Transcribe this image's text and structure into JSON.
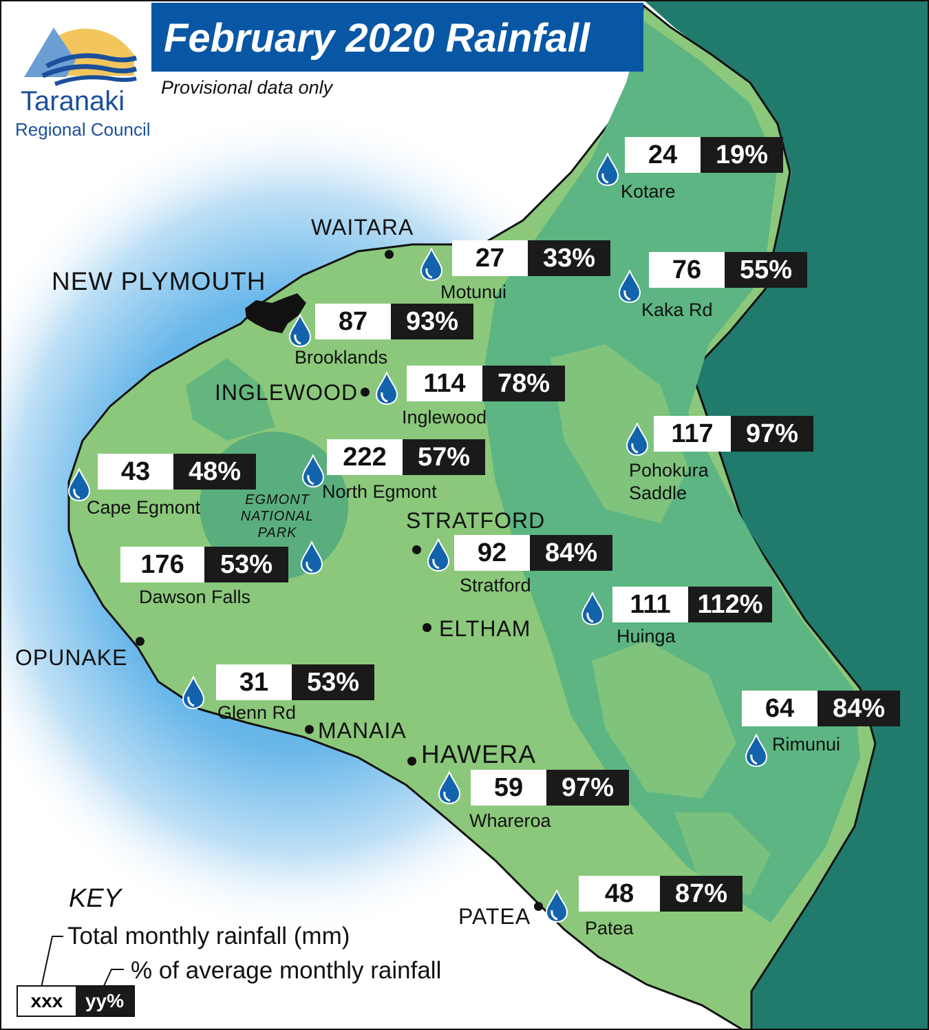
{
  "header": {
    "title": "February 2020 Rainfall",
    "subtitle": "Provisional data only"
  },
  "logo": {
    "line1": "Taranaki",
    "line2": "Regional Council",
    "icon": "mountain-wave-logo"
  },
  "colors": {
    "title_bar": "#0857a5",
    "sea_east": "#217b6c",
    "land": "#8bc87b",
    "forest": "#5cb582",
    "park_circle": "#5aae7d",
    "coastal_glow": "#4aa8e0",
    "drop": "#1363ac"
  },
  "stations": {
    "kotare": {
      "mm": "24",
      "pct": "19%",
      "name": "Kotare"
    },
    "motunui": {
      "mm": "27",
      "pct": "33%",
      "name": "Motunui"
    },
    "kaka": {
      "mm": "76",
      "pct": "55%",
      "name": "Kaka Rd"
    },
    "brooklands": {
      "mm": "87",
      "pct": "93%",
      "name": "Brooklands"
    },
    "inglewood": {
      "mm": "114",
      "pct": "78%",
      "name": "Inglewood"
    },
    "pohokura": {
      "mm": "117",
      "pct": "97%",
      "name_line1": "Pohokura",
      "name_line2": "Saddle"
    },
    "northegmont": {
      "mm": "222",
      "pct": "57%",
      "name": "North Egmont"
    },
    "capeegmont": {
      "mm": "43",
      "pct": "48%",
      "name": "Cape Egmont"
    },
    "dawson": {
      "mm": "176",
      "pct": "53%",
      "name": "Dawson Falls"
    },
    "stratford": {
      "mm": "92",
      "pct": "84%",
      "name": "Stratford"
    },
    "huinga": {
      "mm": "111",
      "pct": "112%",
      "name": "Huinga"
    },
    "glenn": {
      "mm": "31",
      "pct": "53%",
      "name": "Glenn Rd"
    },
    "rimunui": {
      "mm": "64",
      "pct": "84%",
      "name": "Rimunui"
    },
    "whareroa": {
      "mm": "59",
      "pct": "97%",
      "name": "Whareroa"
    },
    "patea": {
      "mm": "48",
      "pct": "87%",
      "name": "Patea"
    }
  },
  "towns": {
    "waitara": "WAITARA",
    "newplymouth": "NEW PLYMOUTH",
    "inglewood": "INGLEWOOD",
    "stratford": "STRATFORD",
    "eltham": "ELTHAM",
    "opunake": "OPUNAKE",
    "manaia": "MANAIA",
    "hawera": "HAWERA",
    "patea": "PATEA"
  },
  "park": {
    "line1": "EGMONT",
    "line2": "NATIONAL",
    "line3": "PARK"
  },
  "key": {
    "title": "KEY",
    "line1": "Total monthly rainfall (mm)",
    "line2": "% of average monthly rainfall",
    "sample_mm": "xxx",
    "sample_pct": "yy%"
  }
}
